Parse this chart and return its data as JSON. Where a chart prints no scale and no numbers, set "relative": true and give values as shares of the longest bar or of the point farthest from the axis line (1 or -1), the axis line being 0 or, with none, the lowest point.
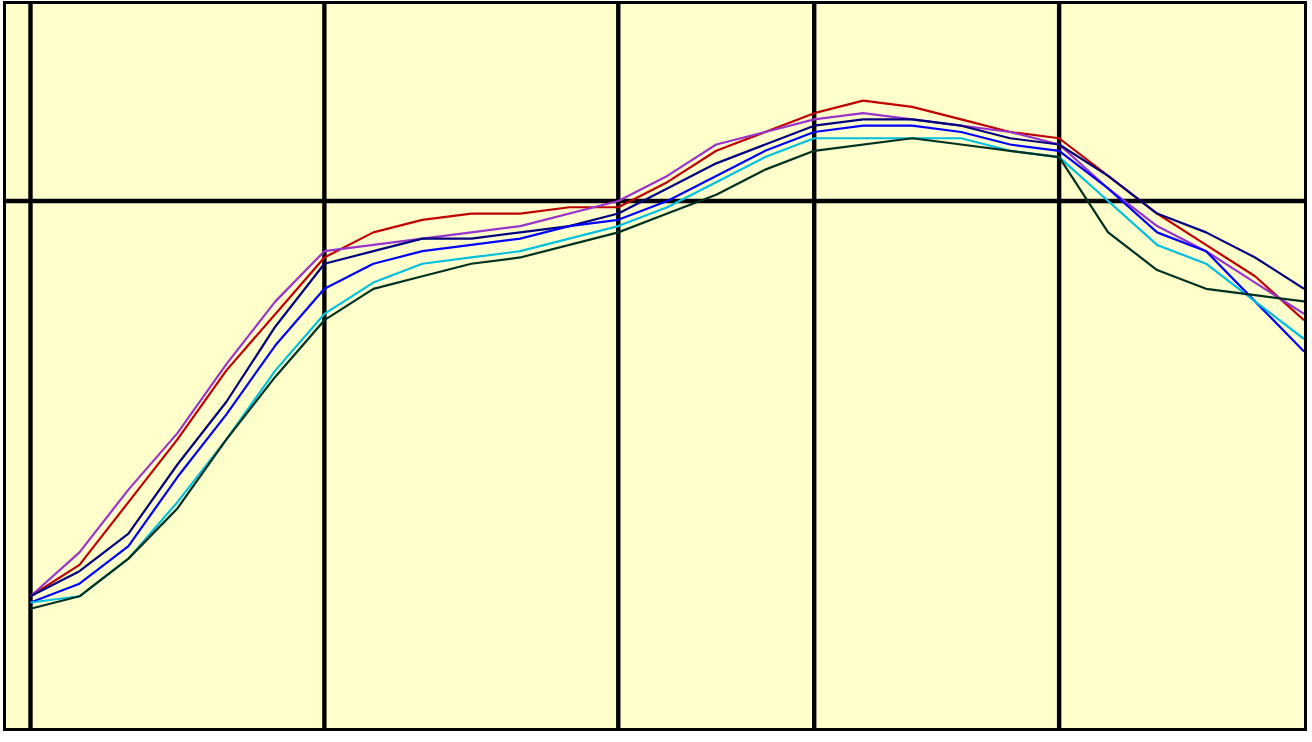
{
  "chart_data": {
    "type": "line",
    "relative": true,
    "categories": [
      null,
      null,
      null,
      null,
      null,
      null,
      null,
      null,
      null,
      null,
      null,
      null,
      null,
      null,
      null,
      null,
      null,
      null,
      null,
      null,
      null,
      null,
      null,
      null,
      null,
      null,
      null
    ],
    "grid": true,
    "ref_lines": [
      {
        "axis": "y",
        "value": 0.84,
        "color": "#000000"
      }
    ],
    "series": [
      {
        "color": "#c00000",
        "values": [
          0.21,
          0.26,
          0.36,
          0.46,
          0.57,
          0.66,
          0.75,
          0.79,
          0.81,
          0.82,
          0.82,
          0.83,
          0.83,
          0.87,
          0.92,
          0.95,
          0.98,
          1.0,
          0.99,
          0.97,
          0.95,
          0.94,
          0.88,
          0.82,
          0.77,
          0.72,
          0.65
        ]
      },
      {
        "color": "#9933cc",
        "values": [
          0.21,
          0.28,
          0.38,
          0.47,
          0.58,
          0.68,
          0.76,
          0.77,
          0.78,
          0.79,
          0.8,
          0.82,
          0.84,
          0.88,
          0.93,
          0.95,
          0.97,
          0.98,
          0.97,
          0.96,
          0.95,
          0.93,
          0.86,
          0.8,
          0.76,
          0.71,
          0.66
        ]
      },
      {
        "color": "#000080",
        "values": [
          0.21,
          0.25,
          0.31,
          0.42,
          0.52,
          0.64,
          0.74,
          0.76,
          0.78,
          0.78,
          0.79,
          0.8,
          0.82,
          0.86,
          0.9,
          0.93,
          0.96,
          0.97,
          0.97,
          0.96,
          0.94,
          0.93,
          0.88,
          0.82,
          0.79,
          0.75,
          0.7
        ]
      },
      {
        "color": "#0000ff",
        "values": [
          0.2,
          0.23,
          0.29,
          0.4,
          0.5,
          0.61,
          0.7,
          0.74,
          0.76,
          0.77,
          0.78,
          0.8,
          0.81,
          0.84,
          0.88,
          0.92,
          0.95,
          0.96,
          0.96,
          0.95,
          0.93,
          0.92,
          0.86,
          0.79,
          0.76,
          0.68,
          0.6
        ]
      },
      {
        "color": "#00c0e0",
        "values": [
          0.2,
          0.21,
          0.27,
          0.36,
          0.46,
          0.57,
          0.66,
          0.71,
          0.74,
          0.75,
          0.76,
          0.78,
          0.8,
          0.83,
          0.87,
          0.91,
          0.94,
          0.94,
          0.94,
          0.94,
          0.92,
          0.91,
          0.84,
          0.77,
          0.74,
          0.68,
          0.62
        ]
      },
      {
        "color": "#003020",
        "values": [
          0.19,
          0.21,
          0.27,
          0.35,
          0.46,
          0.56,
          0.65,
          0.7,
          0.72,
          0.74,
          0.75,
          0.77,
          0.79,
          0.82,
          0.85,
          0.89,
          0.92,
          0.93,
          0.94,
          0.93,
          0.92,
          0.91,
          0.79,
          0.73,
          0.7,
          0.69,
          0.68
        ]
      }
    ]
  }
}
